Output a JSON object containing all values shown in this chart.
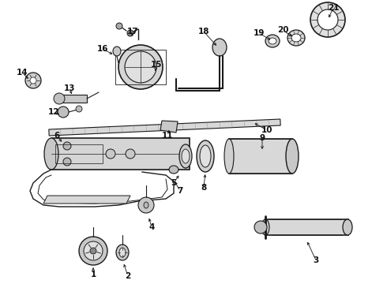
{
  "bg_color": "#ffffff",
  "fig_width": 4.9,
  "fig_height": 3.6,
  "dpi": 100,
  "line_color": "#1a1a1a",
  "label_color": "#111111",
  "label_fontsize": 7.5,
  "label_fontweight": "bold"
}
